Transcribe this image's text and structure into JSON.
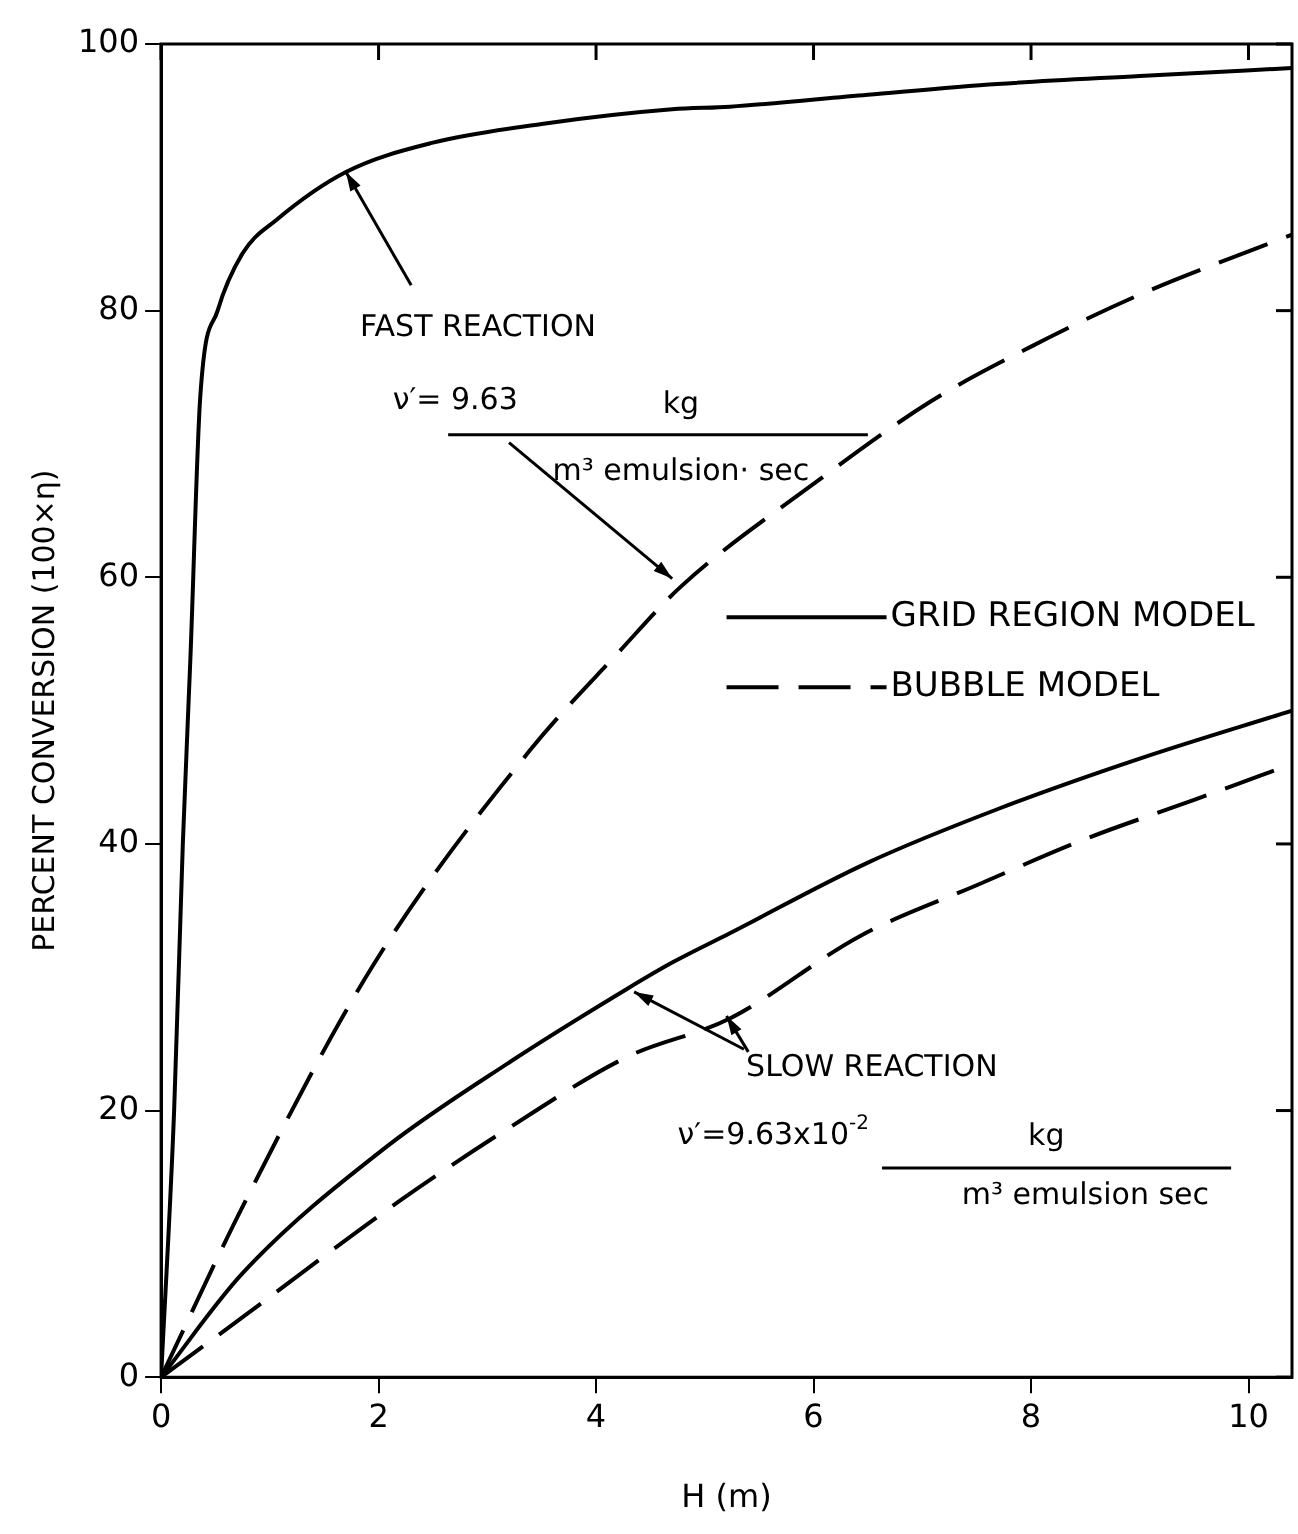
{
  "chart_data": {
    "type": "line",
    "xlabel": "H (m)",
    "ylabel": "PERCENT CONVERSION (100×η)",
    "xlim": [
      0,
      10.4
    ],
    "xticks": [
      0,
      2,
      4,
      6,
      8,
      10
    ],
    "ylim": [
      0,
      100
    ],
    "yticks": [
      0,
      20,
      40,
      60,
      80,
      100
    ],
    "grid": false,
    "legend": "right",
    "marker": "none",
    "series": [
      {
        "name": "GRID REGION MODEL",
        "color": "#000000",
        "line_style": "solid",
        "x": [
          0,
          0.12,
          0.2,
          0.27,
          0.36,
          0.52,
          0.75,
          1.06,
          1.7,
          2.5,
          3.5,
          4.7,
          5.23,
          6.5,
          7.69,
          9,
          10.4
        ],
        "values": [
          0,
          20,
          40,
          54,
          73.5,
          80,
          84.3,
          86.8,
          90.4,
          92.6,
          94,
          95.1,
          95.3,
          96.2,
          97,
          97.6,
          98.2
        ]
      },
      {
        "name": "BUBBLE MODEL",
        "color": "#000000",
        "line_style": "dashed",
        "x": [
          0,
          0.75,
          1.95,
          3.39,
          4.21,
          4.78,
          6,
          7.08,
          8,
          9,
          10.4
        ],
        "values": [
          0,
          12.8,
          30.9,
          47,
          54.4,
          59.3,
          67,
          73.2,
          77.3,
          81.2,
          85.7
        ]
      },
      {
        "color": "#000000",
        "line_style": "solid",
        "x": [
          0,
          0.75,
          2.06,
          3.2,
          4.28,
          4.7,
          5.23,
          6.5,
          7.69,
          9,
          10.4
        ],
        "values": [
          0,
          7.8,
          17.2,
          23.6,
          29.1,
          31.1,
          33.3,
          38.6,
          42.6,
          46.4,
          50
        ]
      },
      {
        "color": "#000000",
        "line_style": "dashed",
        "x": [
          0,
          0.75,
          2.19,
          3.2,
          4.28,
          5.23,
          6.43,
          7.5,
          8.51,
          9.5,
          10.4
        ],
        "values": [
          0,
          4.5,
          13.2,
          18.7,
          24,
          26.9,
          33.1,
          36.9,
          40.4,
          43.3,
          46
        ]
      }
    ],
    "annotations": [
      {
        "text": "FAST REACTION",
        "x": 1.7,
        "y": 90.4
      },
      {
        "text": "ν′= 9.63",
        "x": 4.7,
        "y": 59.9
      },
      "kg",
      "m³ emulsion· sec",
      {
        "text": "SLOW REACTION",
        "x": 4.35,
        "y": 28.9
      },
      "ν′=9.63x10$^{-2}$",
      "kg",
      "m³ emulsion sec"
    ]
  }
}
